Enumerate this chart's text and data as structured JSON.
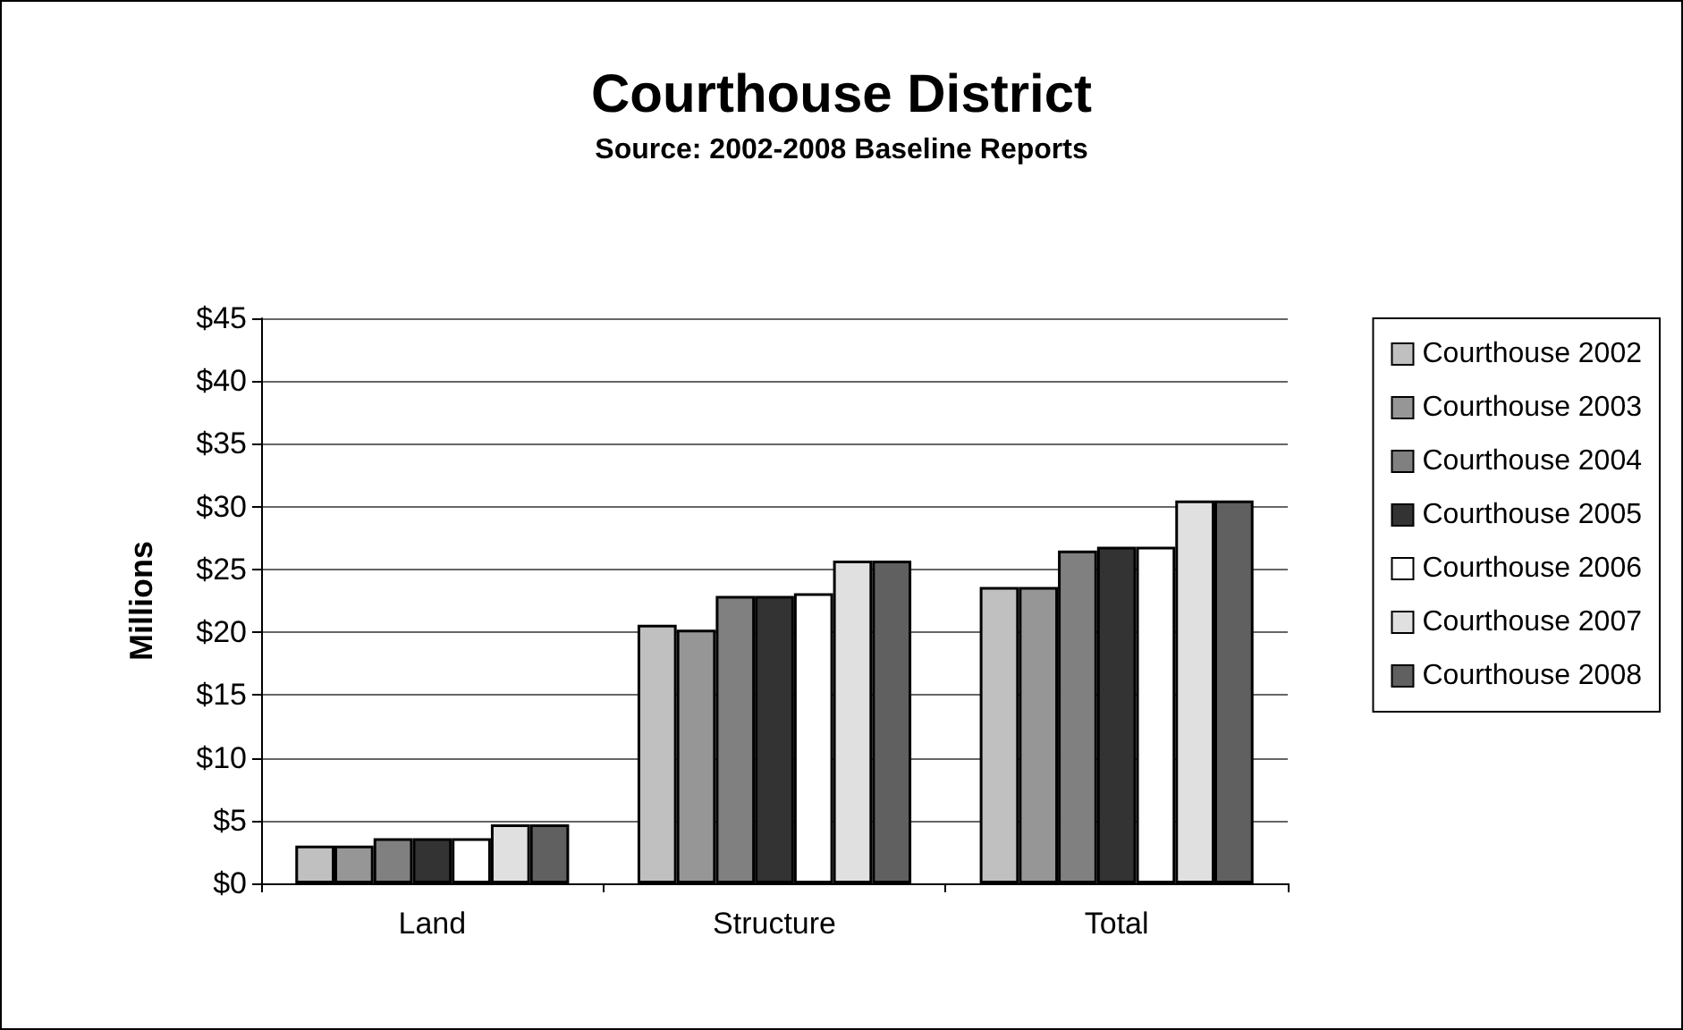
{
  "chart_data": {
    "type": "bar",
    "title": "Courthouse District",
    "subtitle": "Source: 2002-2008 Baseline Reports",
    "ylabel": "Millions",
    "categories": [
      "Land",
      "Structure",
      "Total"
    ],
    "series": [
      {
        "name": "Courthouse 2002",
        "color": "#c0c0c0",
        "values": [
          3.0,
          20.6,
          23.6
        ]
      },
      {
        "name": "Courthouse 2003",
        "color": "#969696",
        "values": [
          3.0,
          20.2,
          23.6
        ]
      },
      {
        "name": "Courthouse 2004",
        "color": "#808080",
        "values": [
          3.6,
          22.9,
          26.5
        ]
      },
      {
        "name": "Courthouse 2005",
        "color": "#333333",
        "values": [
          3.6,
          22.9,
          26.8
        ]
      },
      {
        "name": "Courthouse 2006",
        "color": "#ffffff",
        "values": [
          3.6,
          23.1,
          26.8
        ]
      },
      {
        "name": "Courthouse 2007",
        "color": "#e0e0e0",
        "values": [
          4.7,
          25.7,
          30.5
        ]
      },
      {
        "name": "Courthouse 2008",
        "color": "#606060",
        "values": [
          4.7,
          25.7,
          30.5
        ]
      }
    ],
    "ylim": [
      0,
      45
    ],
    "yticks": [
      {
        "value": 0,
        "label": "$0"
      },
      {
        "value": 5,
        "label": "$5"
      },
      {
        "value": 10,
        "label": "$10"
      },
      {
        "value": 15,
        "label": "$15"
      },
      {
        "value": 20,
        "label": "$20"
      },
      {
        "value": 25,
        "label": "$25"
      },
      {
        "value": 30,
        "label": "$30"
      },
      {
        "value": 35,
        "label": "$35"
      },
      {
        "value": 40,
        "label": "$40"
      },
      {
        "value": 45,
        "label": "$45"
      }
    ],
    "grid": "y",
    "legend": "right"
  }
}
